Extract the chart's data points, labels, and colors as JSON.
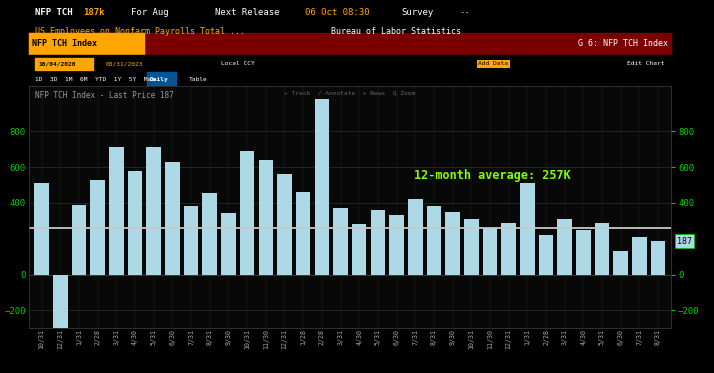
{
  "bar_color": "#add8e6",
  "bg_color": "#000000",
  "chart_bg": "#080808",
  "grid_color": "#1e2a1e",
  "avg_line_color": "#c8c8c8",
  "avg_value": 257,
  "avg_label": "12-month average: 257K",
  "avg_label_color": "#7fff00",
  "ylim": [
    -300,
    1050
  ],
  "yticks": [
    800,
    600,
    400,
    0,
    -200
  ],
  "last_price": 187,
  "last_price_color": "#add8e6",
  "header1_bg": "#000000",
  "header2_bg": "#800000",
  "header3_bg": "#000000",
  "header_bar_bg": "#000000",
  "xtick_labels": [
    "10/31",
    "12/31",
    "1/31",
    "2/28",
    "3/31",
    "4/30",
    "5/31",
    "6/30",
    "7/31",
    "8/31",
    "9/30",
    "10/31",
    "11/30",
    "12/31",
    "1/28",
    "2/28",
    "3/31",
    "4/30",
    "5/31",
    "6/30",
    "7/31",
    "8/31",
    "9/30",
    "10/31",
    "11/30",
    "12/31",
    "1/31",
    "2/28",
    "3/31",
    "4/30",
    "5/31",
    "6/30",
    "7/31",
    "8/31"
  ],
  "values": [
    510,
    -306,
    390,
    530,
    710,
    580,
    710,
    630,
    380,
    455,
    345,
    690,
    640,
    560,
    460,
    980,
    370,
    280,
    360,
    330,
    420,
    380,
    350,
    310,
    260,
    290,
    510,
    220,
    312,
    250,
    290,
    130,
    210,
    187
  ],
  "top_line1_left": "NFP TCH   187k",
  "top_line1_mid": "For Aug     Next Release  06 Oct 08:30     Survey  --",
  "top_line2": "US Employees on Nonfarm Payrolls Total ...       Bureau of Labor Statistics",
  "header_tab": "NFP TCH Index",
  "right_label": "G 6: NFP TCH Index",
  "legend_text": "NFP TCH Index - Last Price 187"
}
